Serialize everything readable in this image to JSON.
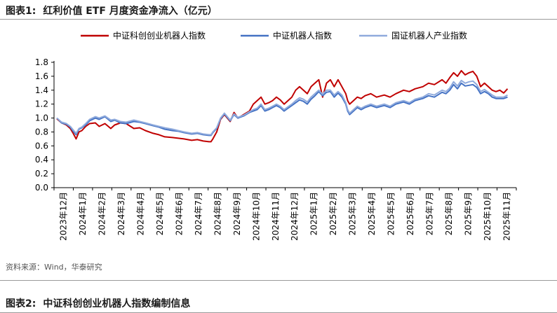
{
  "figure1": {
    "number": "图表1:",
    "title": "红利价值 ETF 月度资金净流入（亿元）"
  },
  "figure2": {
    "number": "图表2:",
    "title": "中证科创创业机器人指数编制信息"
  },
  "source": "资料来源：Wind，华泰研究",
  "chart_data": {
    "type": "line",
    "ylim": [
      0.0,
      1.8
    ],
    "yticks": [
      "0.0",
      "0.2",
      "0.4",
      "0.6",
      "0.8",
      "1.0",
      "1.2",
      "1.4",
      "1.6",
      "1.8"
    ],
    "categories": [
      "2023年12月",
      "2024年1月",
      "2024年2月",
      "2024年3月",
      "2024年4月",
      "2024年5月",
      "2024年6月",
      "2024年7月",
      "2024年8月",
      "2024年9月",
      "2024年10月",
      "2024年11月",
      "2024年12月",
      "2025年1月",
      "2025年2月",
      "2025年3月",
      "2025年4月",
      "2025年5月",
      "2025年6月",
      "2025年7月",
      "2025年8月",
      "2025年9月",
      "2025年10月",
      "2025年11月"
    ],
    "legend_position": "top",
    "series": [
      {
        "name": "中证科创创业机器人指数",
        "color": "#c00000",
        "x": [
          0,
          0.25,
          0.5,
          0.7,
          0.85,
          1,
          1.15,
          1.3,
          1.5,
          1.7,
          2,
          2.2,
          2.5,
          2.8,
          3,
          3.3,
          3.6,
          4,
          4.3,
          4.6,
          5,
          5.3,
          5.6,
          6,
          6.3,
          6.6,
          7,
          7.3,
          7.6,
          7.9,
          8,
          8.1,
          8.3,
          8.5,
          8.7,
          9,
          9.2,
          9.4,
          9.7,
          10,
          10.2,
          10.4,
          10.6,
          10.8,
          11,
          11.2,
          11.4,
          11.6,
          11.8,
          12,
          12.2,
          12.4,
          12.6,
          12.8,
          13,
          13.2,
          13.4,
          13.6,
          13.8,
          14,
          14.2,
          14.4,
          14.6,
          14.8,
          15,
          15.1,
          15.2,
          15.4,
          15.6,
          15.8,
          16,
          16.3,
          16.6,
          17,
          17.3,
          17.6,
          18,
          18.3,
          18.6,
          19,
          19.3,
          19.6,
          20,
          20.2,
          20.4,
          20.6,
          20.8,
          21,
          21.2,
          21.4,
          21.6,
          21.8,
          22,
          22.2,
          22.4,
          22.6,
          22.8,
          23,
          23.2,
          23.4
        ],
        "values": [
          0.99,
          0.93,
          0.9,
          0.85,
          0.78,
          0.7,
          0.8,
          0.82,
          0.88,
          0.92,
          0.93,
          0.88,
          0.92,
          0.85,
          0.9,
          0.93,
          0.92,
          0.85,
          0.86,
          0.82,
          0.78,
          0.76,
          0.73,
          0.72,
          0.71,
          0.7,
          0.68,
          0.69,
          0.67,
          0.66,
          0.66,
          0.7,
          0.8,
          0.98,
          1.05,
          0.95,
          1.08,
          1.0,
          1.05,
          1.1,
          1.2,
          1.25,
          1.3,
          1.2,
          1.22,
          1.25,
          1.3,
          1.26,
          1.2,
          1.25,
          1.3,
          1.4,
          1.45,
          1.4,
          1.35,
          1.45,
          1.5,
          1.55,
          1.3,
          1.5,
          1.55,
          1.45,
          1.55,
          1.45,
          1.35,
          1.25,
          1.2,
          1.25,
          1.3,
          1.28,
          1.32,
          1.35,
          1.3,
          1.33,
          1.3,
          1.35,
          1.4,
          1.38,
          1.42,
          1.45,
          1.5,
          1.48,
          1.55,
          1.5,
          1.58,
          1.65,
          1.6,
          1.68,
          1.62,
          1.65,
          1.67,
          1.6,
          1.45,
          1.5,
          1.45,
          1.4,
          1.38,
          1.4,
          1.36,
          1.42
        ]
      },
      {
        "name": "中证机器人指数",
        "color": "#4472c4",
        "x": [
          0,
          0.25,
          0.5,
          0.7,
          0.85,
          1,
          1.15,
          1.3,
          1.5,
          1.7,
          2,
          2.2,
          2.5,
          2.8,
          3,
          3.3,
          3.6,
          4,
          4.3,
          4.6,
          5,
          5.3,
          5.6,
          6,
          6.3,
          6.6,
          7,
          7.3,
          7.6,
          7.9,
          8,
          8.1,
          8.3,
          8.5,
          8.7,
          9,
          9.2,
          9.4,
          9.7,
          10,
          10.2,
          10.4,
          10.6,
          10.8,
          11,
          11.2,
          11.4,
          11.6,
          11.8,
          12,
          12.2,
          12.4,
          12.6,
          12.8,
          13,
          13.2,
          13.4,
          13.6,
          13.8,
          14,
          14.2,
          14.4,
          14.6,
          14.8,
          15,
          15.1,
          15.2,
          15.4,
          15.6,
          15.8,
          16,
          16.3,
          16.6,
          17,
          17.3,
          17.6,
          18,
          18.3,
          18.6,
          19,
          19.3,
          19.6,
          20,
          20.2,
          20.4,
          20.6,
          20.8,
          21,
          21.2,
          21.4,
          21.6,
          21.8,
          22,
          22.2,
          22.4,
          22.6,
          22.8,
          23,
          23.2,
          23.4
        ],
        "values": [
          1.0,
          0.93,
          0.91,
          0.87,
          0.81,
          0.76,
          0.84,
          0.86,
          0.9,
          0.96,
          1.0,
          0.98,
          1.02,
          0.95,
          0.97,
          0.93,
          0.92,
          0.95,
          0.94,
          0.92,
          0.89,
          0.87,
          0.84,
          0.82,
          0.81,
          0.79,
          0.77,
          0.78,
          0.76,
          0.75,
          0.75,
          0.79,
          0.85,
          0.99,
          1.06,
          0.96,
          1.05,
          1.0,
          1.03,
          1.08,
          1.1,
          1.12,
          1.18,
          1.1,
          1.12,
          1.15,
          1.18,
          1.15,
          1.1,
          1.14,
          1.18,
          1.22,
          1.26,
          1.24,
          1.2,
          1.27,
          1.32,
          1.38,
          1.32,
          1.37,
          1.38,
          1.3,
          1.36,
          1.3,
          1.2,
          1.1,
          1.05,
          1.1,
          1.15,
          1.12,
          1.15,
          1.18,
          1.15,
          1.18,
          1.15,
          1.2,
          1.23,
          1.2,
          1.25,
          1.28,
          1.32,
          1.3,
          1.37,
          1.35,
          1.4,
          1.48,
          1.42,
          1.5,
          1.46,
          1.47,
          1.48,
          1.44,
          1.35,
          1.38,
          1.35,
          1.3,
          1.28,
          1.28,
          1.28,
          1.3
        ]
      },
      {
        "name": "国证机器人产业指数",
        "color": "#8faadc",
        "x": [
          0,
          0.25,
          0.5,
          0.7,
          0.85,
          1,
          1.15,
          1.3,
          1.5,
          1.7,
          2,
          2.2,
          2.5,
          2.8,
          3,
          3.3,
          3.6,
          4,
          4.3,
          4.6,
          5,
          5.3,
          5.6,
          6,
          6.3,
          6.6,
          7,
          7.3,
          7.6,
          7.9,
          8,
          8.1,
          8.3,
          8.5,
          8.7,
          9,
          9.2,
          9.4,
          9.7,
          10,
          10.2,
          10.4,
          10.6,
          10.8,
          11,
          11.2,
          11.4,
          11.6,
          11.8,
          12,
          12.2,
          12.4,
          12.6,
          12.8,
          13,
          13.2,
          13.4,
          13.6,
          13.8,
          14,
          14.2,
          14.4,
          14.6,
          14.8,
          15,
          15.1,
          15.2,
          15.4,
          15.6,
          15.8,
          16,
          16.3,
          16.6,
          17,
          17.3,
          17.6,
          18,
          18.3,
          18.6,
          19,
          19.3,
          19.6,
          20,
          20.2,
          20.4,
          20.6,
          20.8,
          21,
          21.2,
          21.4,
          21.6,
          21.8,
          22,
          22.2,
          22.4,
          22.6,
          22.8,
          23,
          23.2,
          23.4
        ],
        "values": [
          1.0,
          0.94,
          0.92,
          0.88,
          0.83,
          0.78,
          0.85,
          0.87,
          0.92,
          0.98,
          1.02,
          1.0,
          1.03,
          0.97,
          0.98,
          0.95,
          0.94,
          0.97,
          0.95,
          0.93,
          0.9,
          0.88,
          0.86,
          0.84,
          0.82,
          0.8,
          0.78,
          0.79,
          0.77,
          0.76,
          0.76,
          0.8,
          0.86,
          1.0,
          1.07,
          0.97,
          1.06,
          1.01,
          1.04,
          1.09,
          1.12,
          1.14,
          1.2,
          1.12,
          1.14,
          1.17,
          1.2,
          1.17,
          1.12,
          1.16,
          1.2,
          1.25,
          1.29,
          1.27,
          1.23,
          1.3,
          1.35,
          1.4,
          1.34,
          1.4,
          1.4,
          1.33,
          1.38,
          1.33,
          1.22,
          1.12,
          1.07,
          1.12,
          1.17,
          1.14,
          1.17,
          1.2,
          1.17,
          1.2,
          1.17,
          1.22,
          1.25,
          1.22,
          1.27,
          1.3,
          1.35,
          1.33,
          1.4,
          1.38,
          1.43,
          1.52,
          1.46,
          1.54,
          1.5,
          1.52,
          1.53,
          1.48,
          1.38,
          1.41,
          1.37,
          1.33,
          1.3,
          1.3,
          1.3,
          1.33
        ]
      }
    ]
  }
}
